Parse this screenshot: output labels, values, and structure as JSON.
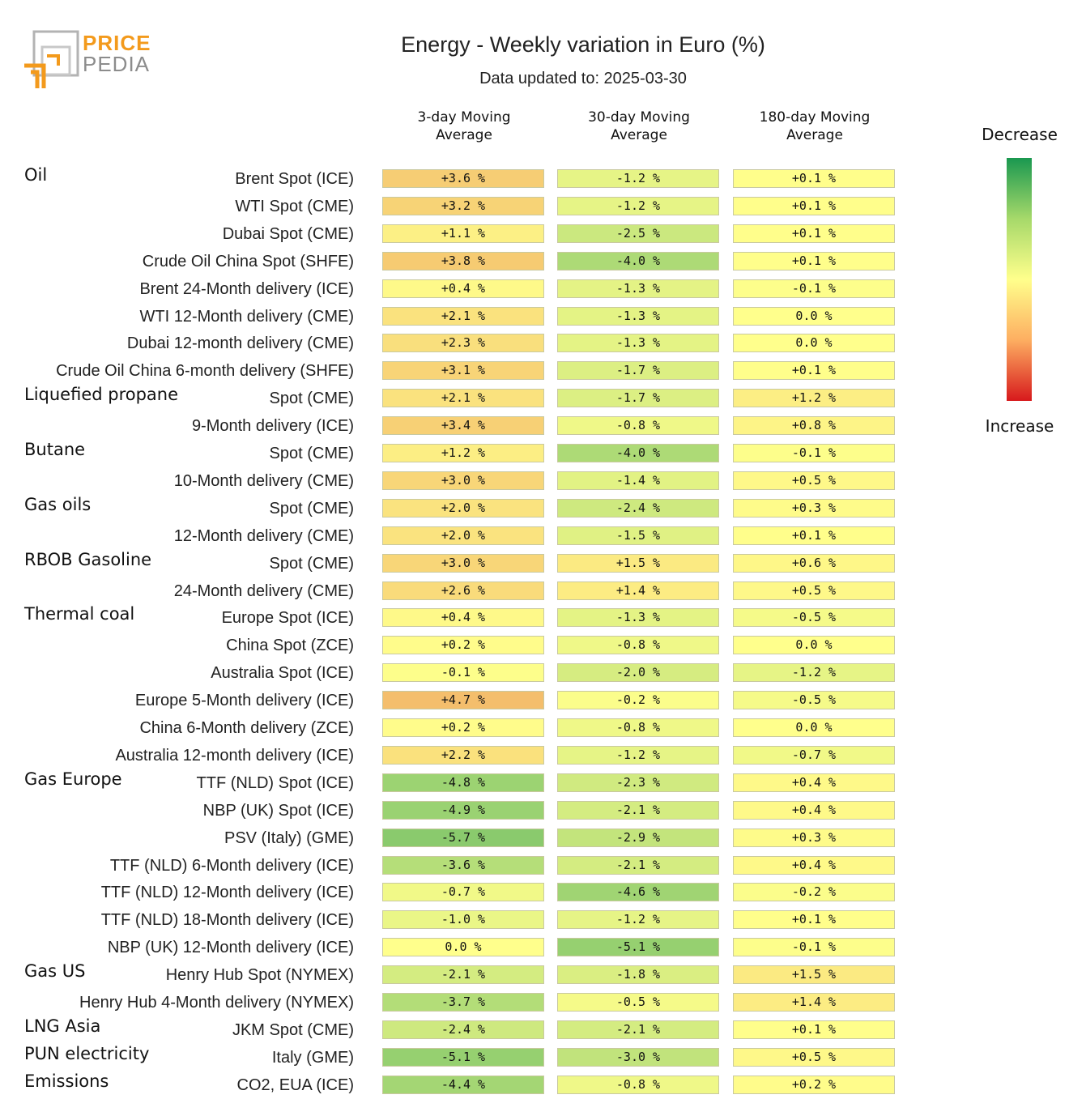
{
  "brand": {
    "line1": "PRICE",
    "line2": "PEDIA"
  },
  "header": {
    "title": "Energy - Weekly variation in Euro (%)",
    "subtitle": "Data updated to: 2025-03-30"
  },
  "legend": {
    "top": "Decrease",
    "bottom": "Increase"
  },
  "chart_data": {
    "type": "table",
    "title": "Energy - Weekly variation in Euro (%)",
    "columns": [
      "3-day Moving Average",
      "30-day Moving Average",
      "180-day Moving Average"
    ],
    "column_lines": [
      [
        "3-day Moving",
        "Average"
      ],
      [
        "30-day Moving",
        "Average"
      ],
      [
        "180-day Moving",
        "Average"
      ]
    ],
    "unit": "%",
    "color_scale": {
      "min": -10,
      "max": 10,
      "low_color": "#1a9850",
      "mid_color": "#ffff8c",
      "high_color": "#d7191c"
    },
    "rows": [
      {
        "group": "Oil",
        "label": "Brent Spot (ICE)",
        "values": [
          3.6,
          -1.2,
          0.1
        ],
        "texts": [
          "+3.6 %",
          "-1.2 %",
          "+0.1 %"
        ]
      },
      {
        "group": "",
        "label": "WTI Spot (CME)",
        "values": [
          3.2,
          -1.2,
          0.1
        ],
        "texts": [
          "+3.2 %",
          "-1.2 %",
          "+0.1 %"
        ]
      },
      {
        "group": "",
        "label": "Dubai Spot (CME)",
        "values": [
          1.1,
          -2.5,
          0.1
        ],
        "texts": [
          "+1.1 %",
          "-2.5 %",
          "+0.1 %"
        ]
      },
      {
        "group": "",
        "label": "Crude Oil China Spot (SHFE)",
        "values": [
          3.8,
          -4.0,
          0.1
        ],
        "texts": [
          "+3.8 %",
          "-4.0 %",
          "+0.1 %"
        ]
      },
      {
        "group": "",
        "label": "Brent 24-Month delivery (ICE)",
        "values": [
          0.4,
          -1.3,
          -0.1
        ],
        "texts": [
          "+0.4 %",
          "-1.3 %",
          "-0.1 %"
        ]
      },
      {
        "group": "",
        "label": "WTI 12-Month delivery (CME)",
        "values": [
          2.1,
          -1.3,
          0.0
        ],
        "texts": [
          "+2.1 %",
          "-1.3 %",
          "0.0 %"
        ]
      },
      {
        "group": "",
        "label": "Dubai 12-month delivery (CME)",
        "values": [
          2.3,
          -1.3,
          0.0
        ],
        "texts": [
          "+2.3 %",
          "-1.3 %",
          "0.0 %"
        ]
      },
      {
        "group": "",
        "label": "Crude Oil China 6-month delivery (SHFE)",
        "values": [
          3.1,
          -1.7,
          0.1
        ],
        "texts": [
          "+3.1 %",
          "-1.7 %",
          "+0.1 %"
        ]
      },
      {
        "group": "Liquefied propane",
        "label": "Spot (CME)",
        "values": [
          2.1,
          -1.7,
          1.2
        ],
        "texts": [
          "+2.1 %",
          "-1.7 %",
          "+1.2 %"
        ]
      },
      {
        "group": "",
        "label": "9-Month delivery (ICE)",
        "values": [
          3.4,
          -0.8,
          0.8
        ],
        "texts": [
          "+3.4 %",
          "-0.8 %",
          "+0.8 %"
        ]
      },
      {
        "group": "Butane",
        "label": "Spot (CME)",
        "values": [
          1.2,
          -4.0,
          -0.1
        ],
        "texts": [
          "+1.2 %",
          "-4.0 %",
          "-0.1 %"
        ]
      },
      {
        "group": "",
        "label": "10-Month delivery (CME)",
        "values": [
          3.0,
          -1.4,
          0.5
        ],
        "texts": [
          "+3.0 %",
          "-1.4 %",
          "+0.5 %"
        ]
      },
      {
        "group": "Gas oils",
        "label": "Spot (CME)",
        "values": [
          2.0,
          -2.4,
          0.3
        ],
        "texts": [
          "+2.0 %",
          "-2.4 %",
          "+0.3 %"
        ]
      },
      {
        "group": "",
        "label": "12-Month delivery (CME)",
        "values": [
          2.0,
          -1.5,
          0.1
        ],
        "texts": [
          "+2.0 %",
          "-1.5 %",
          "+0.1 %"
        ]
      },
      {
        "group": "RBOB Gasoline",
        "label": "Spot (CME)",
        "values": [
          3.0,
          1.5,
          0.6
        ],
        "texts": [
          "+3.0 %",
          "+1.5 %",
          "+0.6 %"
        ]
      },
      {
        "group": "",
        "label": "24-Month delivery (CME)",
        "values": [
          2.6,
          1.4,
          0.5
        ],
        "texts": [
          "+2.6 %",
          "+1.4 %",
          "+0.5 %"
        ]
      },
      {
        "group": "Thermal coal",
        "label": "Europe Spot (ICE)",
        "values": [
          0.4,
          -1.3,
          -0.5
        ],
        "texts": [
          "+0.4 %",
          "-1.3 %",
          "-0.5 %"
        ]
      },
      {
        "group": "",
        "label": "China Spot (ZCE)",
        "values": [
          0.2,
          -0.8,
          0.0
        ],
        "texts": [
          "+0.2 %",
          "-0.8 %",
          "0.0 %"
        ]
      },
      {
        "group": "",
        "label": "Australia Spot (ICE)",
        "values": [
          -0.1,
          -2.0,
          -1.2
        ],
        "texts": [
          "-0.1 %",
          "-2.0 %",
          "-1.2 %"
        ]
      },
      {
        "group": "",
        "label": "Europe 5-Month delivery (ICE)",
        "values": [
          4.7,
          -0.2,
          -0.5
        ],
        "texts": [
          "+4.7 %",
          "-0.2 %",
          "-0.5 %"
        ]
      },
      {
        "group": "",
        "label": "China 6-Month delivery (ZCE)",
        "values": [
          0.2,
          -0.8,
          0.0
        ],
        "texts": [
          "+0.2 %",
          "-0.8 %",
          "0.0 %"
        ]
      },
      {
        "group": "",
        "label": "Australia 12-month delivery (ICE)",
        "values": [
          2.2,
          -1.2,
          -0.7
        ],
        "texts": [
          "+2.2 %",
          "-1.2 %",
          "-0.7 %"
        ]
      },
      {
        "group": "Gas Europe",
        "label": "TTF (NLD) Spot (ICE)",
        "values": [
          -4.8,
          -2.3,
          0.4
        ],
        "texts": [
          "-4.8 %",
          "-2.3 %",
          "+0.4 %"
        ]
      },
      {
        "group": "",
        "label": "NBP (UK) Spot (ICE)",
        "values": [
          -4.9,
          -2.1,
          0.4
        ],
        "texts": [
          "-4.9 %",
          "-2.1 %",
          "+0.4 %"
        ]
      },
      {
        "group": "",
        "label": "PSV (Italy) (GME)",
        "values": [
          -5.7,
          -2.9,
          0.3
        ],
        "texts": [
          "-5.7 %",
          "-2.9 %",
          "+0.3 %"
        ]
      },
      {
        "group": "",
        "label": "TTF (NLD) 6-Month delivery (ICE)",
        "values": [
          -3.6,
          -2.1,
          0.4
        ],
        "texts": [
          "-3.6 %",
          "-2.1 %",
          "+0.4 %"
        ]
      },
      {
        "group": "",
        "label": "TTF (NLD) 12-Month delivery (ICE)",
        "values": [
          -0.7,
          -4.6,
          -0.2
        ],
        "texts": [
          "-0.7 %",
          "-4.6 %",
          "-0.2 %"
        ]
      },
      {
        "group": "",
        "label": "TTF (NLD) 18-Month delivery (ICE)",
        "values": [
          -1.0,
          -1.2,
          0.1
        ],
        "texts": [
          "-1.0 %",
          "-1.2 %",
          "+0.1 %"
        ]
      },
      {
        "group": "",
        "label": "NBP (UK) 12-Month delivery (ICE)",
        "values": [
          0.0,
          -5.1,
          -0.1
        ],
        "texts": [
          "0.0 %",
          "-5.1 %",
          "-0.1 %"
        ]
      },
      {
        "group": "Gas US",
        "label": "Henry Hub Spot (NYMEX)",
        "values": [
          -2.1,
          -1.8,
          1.5
        ],
        "texts": [
          "-2.1 %",
          "-1.8 %",
          "+1.5 %"
        ]
      },
      {
        "group": "",
        "label": "Henry Hub 4-Month delivery (NYMEX)",
        "values": [
          -3.7,
          -0.5,
          1.4
        ],
        "texts": [
          "-3.7 %",
          "-0.5 %",
          "+1.4 %"
        ]
      },
      {
        "group": "LNG Asia",
        "label": "JKM Spot (CME)",
        "values": [
          -2.4,
          -2.1,
          0.1
        ],
        "texts": [
          "-2.4 %",
          "-2.1 %",
          "+0.1 %"
        ]
      },
      {
        "group": "PUN electricity",
        "label": "Italy (GME)",
        "values": [
          -5.1,
          -3.0,
          0.5
        ],
        "texts": [
          "-5.1 %",
          "-3.0 %",
          "+0.5 %"
        ]
      },
      {
        "group": "Emissions",
        "label": "CO2, EUA (ICE)",
        "values": [
          -4.4,
          -0.8,
          0.2
        ],
        "texts": [
          "-4.4 %",
          "-0.8 %",
          "+0.2 %"
        ]
      }
    ]
  }
}
